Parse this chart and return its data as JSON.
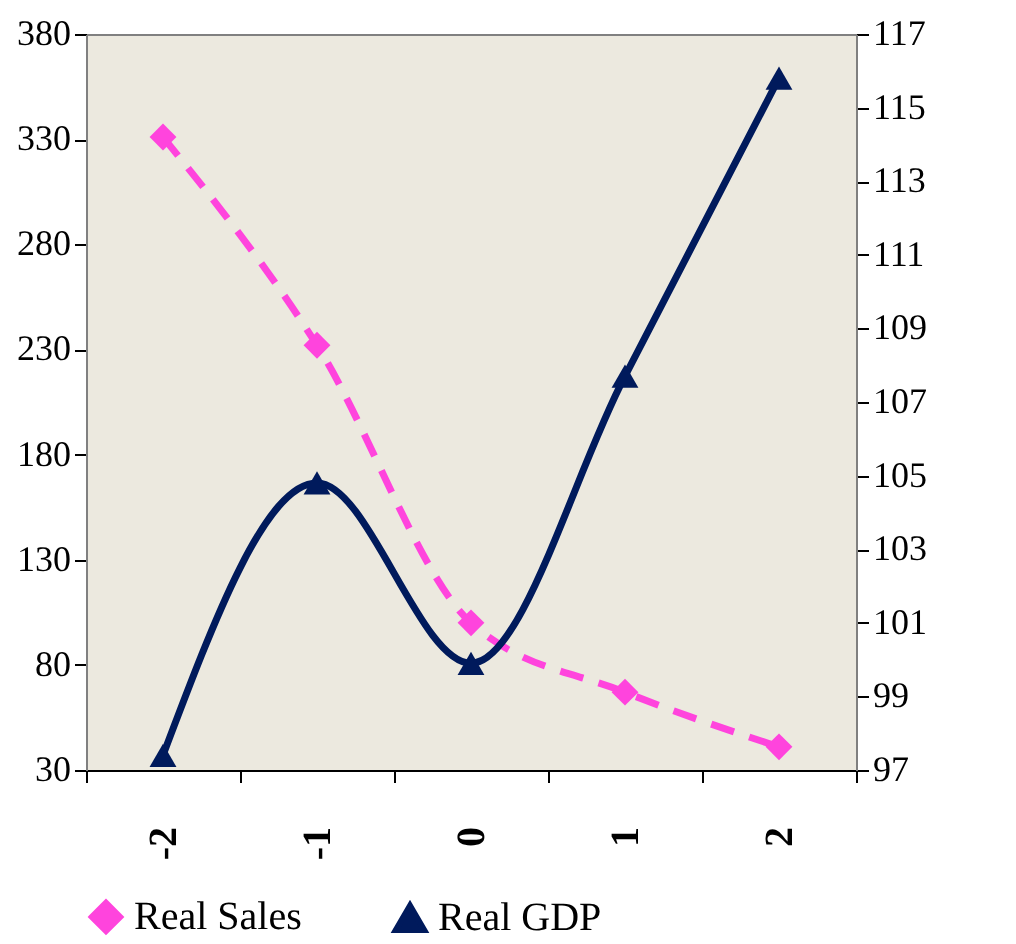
{
  "chart_data": {
    "type": "line",
    "categories": [
      "-2",
      "-1",
      "0",
      "1",
      "2"
    ],
    "series": [
      {
        "name": "Real Sales",
        "color": "#ff44dd",
        "values": [
          331,
          232,
          100,
          67,
          41
        ],
        "marker": "diamond",
        "line_style": "dashed"
      },
      {
        "name": "Real GDP",
        "color": "#001a5c",
        "values": [
          97.4,
          104.8,
          99.9,
          107.7,
          115.8
        ],
        "marker": "triangle",
        "line_style": "solid",
        "axis": "y2"
      }
    ],
    "ylim": [
      30,
      380
    ],
    "yticks": [
      30,
      80,
      130,
      180,
      230,
      280,
      330,
      380
    ],
    "y2lim": [
      97,
      117
    ],
    "y2ticks": [
      97,
      99,
      101,
      103,
      105,
      107,
      109,
      111,
      113,
      115,
      117
    ],
    "grid": false,
    "legend": "bottom"
  }
}
